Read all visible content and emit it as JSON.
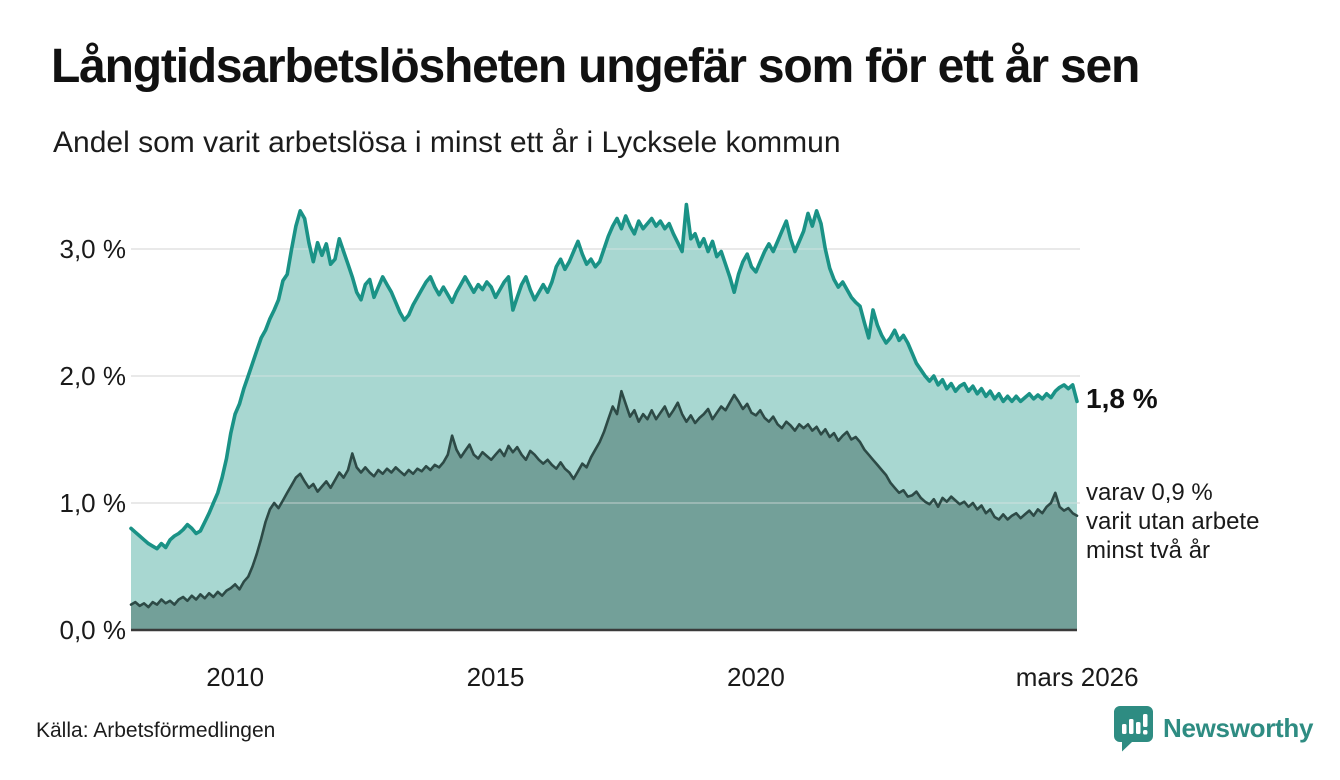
{
  "header": {
    "title": "Långtidsarbetslösheten ungefär som för ett år sen",
    "subtitle": "Andel som varit arbetslösa i minst ett år i Lycksele kommun"
  },
  "annotations": {
    "latest_value_label": "1,8 %",
    "secondary_label": "varav 0,9 % varit utan arbete minst två år",
    "secondary_lines": [
      "varav 0,9 %",
      "varit utan arbete",
      "minst två år"
    ]
  },
  "footer": {
    "source": "Källa: Arbetsförmedlingen",
    "brand_name": "Newsworthy"
  },
  "chart_data": {
    "type": "area",
    "title": "Långtidsarbetslösheten ungefär som för ett år sen",
    "subtitle": "Andel som varit arbetslösa i minst ett år i Lycksele kommun",
    "unit": "%",
    "x_start": "2008-01",
    "x_end": "2026-03",
    "frequency": "monthly",
    "ylim": [
      0,
      3.35
    ],
    "grid": true,
    "y_ticks": [
      {
        "value": 0,
        "label": "0,0 %"
      },
      {
        "value": 1,
        "label": "1,0 %"
      },
      {
        "value": 2,
        "label": "2,0 %"
      },
      {
        "value": 3,
        "label": "3,0 %"
      }
    ],
    "x_ticks": [
      {
        "year": 2010,
        "label": "2010"
      },
      {
        "year": 2015,
        "label": "2015"
      },
      {
        "year": 2020,
        "label": "2020"
      },
      {
        "year": 2026.17,
        "label": "mars 2026"
      }
    ],
    "colors": {
      "grid": "#e0e0e0",
      "baseline": "#3a3a3a",
      "brand": "#2e8c82"
    },
    "series": [
      {
        "name": "Andel arbetslösa minst ett år",
        "line_color": "#1a9286",
        "fill_color": "#9fd3cc",
        "latest_value": 1.8,
        "values": [
          0.8,
          0.77,
          0.74,
          0.71,
          0.68,
          0.66,
          0.64,
          0.68,
          0.65,
          0.71,
          0.74,
          0.76,
          0.79,
          0.83,
          0.8,
          0.76,
          0.78,
          0.85,
          0.92,
          1.0,
          1.08,
          1.2,
          1.35,
          1.55,
          1.7,
          1.78,
          1.9,
          2.0,
          2.1,
          2.2,
          2.3,
          2.36,
          2.45,
          2.52,
          2.6,
          2.75,
          2.8,
          3.0,
          3.18,
          3.3,
          3.24,
          3.05,
          2.9,
          3.05,
          2.95,
          3.04,
          2.88,
          2.92,
          3.08,
          2.98,
          2.88,
          2.78,
          2.66,
          2.6,
          2.72,
          2.76,
          2.62,
          2.7,
          2.78,
          2.72,
          2.66,
          2.58,
          2.5,
          2.44,
          2.48,
          2.56,
          2.62,
          2.68,
          2.74,
          2.78,
          2.7,
          2.64,
          2.7,
          2.64,
          2.58,
          2.66,
          2.72,
          2.78,
          2.72,
          2.66,
          2.72,
          2.68,
          2.74,
          2.7,
          2.62,
          2.68,
          2.74,
          2.78,
          2.52,
          2.62,
          2.72,
          2.78,
          2.68,
          2.6,
          2.66,
          2.72,
          2.66,
          2.74,
          2.86,
          2.92,
          2.84,
          2.9,
          2.98,
          3.06,
          2.96,
          2.88,
          2.92,
          2.86,
          2.9,
          3.0,
          3.1,
          3.18,
          3.24,
          3.16,
          3.26,
          3.18,
          3.12,
          3.22,
          3.16,
          3.2,
          3.24,
          3.18,
          3.22,
          3.16,
          3.2,
          3.12,
          3.05,
          2.98,
          3.35,
          3.08,
          3.12,
          3.02,
          3.08,
          2.98,
          3.06,
          2.94,
          2.98,
          2.88,
          2.78,
          2.66,
          2.8,
          2.9,
          2.96,
          2.86,
          2.82,
          2.9,
          2.98,
          3.04,
          2.98,
          3.06,
          3.14,
          3.22,
          3.08,
          2.98,
          3.06,
          3.14,
          3.28,
          3.18,
          3.3,
          3.2,
          3.0,
          2.85,
          2.76,
          2.7,
          2.74,
          2.68,
          2.62,
          2.58,
          2.55,
          2.42,
          2.3,
          2.52,
          2.4,
          2.32,
          2.26,
          2.3,
          2.36,
          2.28,
          2.32,
          2.26,
          2.18,
          2.1,
          2.05,
          2.0,
          1.96,
          2.0,
          1.93,
          1.97,
          1.9,
          1.94,
          1.88,
          1.92,
          1.94,
          1.88,
          1.92,
          1.86,
          1.9,
          1.84,
          1.88,
          1.82,
          1.86,
          1.8,
          1.84,
          1.8,
          1.84,
          1.8,
          1.83,
          1.86,
          1.82,
          1.85,
          1.82,
          1.86,
          1.83,
          1.88,
          1.91,
          1.93,
          1.9,
          1.93,
          1.8
        ]
      },
      {
        "name": "varav utan arbete minst två år",
        "line_color": "#2d4a46",
        "fill_color": "#6f9b94",
        "latest_value": 0.9,
        "values": [
          0.2,
          0.22,
          0.19,
          0.21,
          0.18,
          0.22,
          0.2,
          0.24,
          0.21,
          0.23,
          0.2,
          0.24,
          0.26,
          0.23,
          0.27,
          0.24,
          0.28,
          0.25,
          0.29,
          0.26,
          0.3,
          0.27,
          0.31,
          0.33,
          0.36,
          0.32,
          0.38,
          0.42,
          0.5,
          0.6,
          0.72,
          0.85,
          0.95,
          1.0,
          0.96,
          1.02,
          1.08,
          1.14,
          1.2,
          1.23,
          1.17,
          1.12,
          1.15,
          1.09,
          1.13,
          1.17,
          1.12,
          1.18,
          1.24,
          1.2,
          1.26,
          1.39,
          1.28,
          1.24,
          1.28,
          1.24,
          1.21,
          1.26,
          1.23,
          1.27,
          1.24,
          1.28,
          1.25,
          1.22,
          1.26,
          1.23,
          1.27,
          1.25,
          1.29,
          1.26,
          1.3,
          1.28,
          1.32,
          1.38,
          1.53,
          1.42,
          1.36,
          1.41,
          1.46,
          1.38,
          1.35,
          1.4,
          1.37,
          1.34,
          1.38,
          1.42,
          1.37,
          1.45,
          1.4,
          1.44,
          1.38,
          1.34,
          1.41,
          1.38,
          1.34,
          1.31,
          1.34,
          1.3,
          1.27,
          1.32,
          1.27,
          1.24,
          1.19,
          1.25,
          1.31,
          1.28,
          1.36,
          1.42,
          1.48,
          1.56,
          1.66,
          1.76,
          1.7,
          1.88,
          1.78,
          1.68,
          1.73,
          1.64,
          1.7,
          1.66,
          1.73,
          1.66,
          1.71,
          1.76,
          1.68,
          1.73,
          1.79,
          1.7,
          1.64,
          1.69,
          1.63,
          1.67,
          1.7,
          1.74,
          1.66,
          1.71,
          1.76,
          1.73,
          1.79,
          1.85,
          1.8,
          1.74,
          1.78,
          1.71,
          1.69,
          1.73,
          1.67,
          1.64,
          1.68,
          1.62,
          1.59,
          1.64,
          1.61,
          1.57,
          1.62,
          1.59,
          1.62,
          1.57,
          1.6,
          1.54,
          1.58,
          1.52,
          1.55,
          1.49,
          1.53,
          1.56,
          1.5,
          1.52,
          1.48,
          1.42,
          1.38,
          1.34,
          1.3,
          1.26,
          1.22,
          1.16,
          1.12,
          1.08,
          1.1,
          1.05,
          1.06,
          1.09,
          1.04,
          1.01,
          0.99,
          1.03,
          0.97,
          1.04,
          1.01,
          1.05,
          1.02,
          0.99,
          1.01,
          0.97,
          1.0,
          0.95,
          0.98,
          0.92,
          0.95,
          0.89,
          0.87,
          0.91,
          0.87,
          0.9,
          0.92,
          0.88,
          0.91,
          0.94,
          0.9,
          0.95,
          0.92,
          0.97,
          1.0,
          1.08,
          0.97,
          0.94,
          0.96,
          0.92,
          0.9
        ]
      }
    ]
  }
}
